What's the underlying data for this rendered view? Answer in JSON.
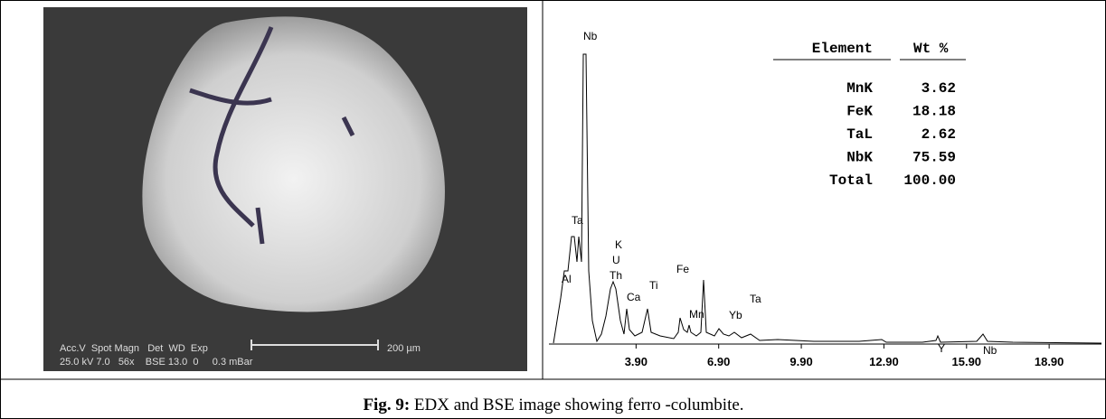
{
  "photo": {
    "line1": "Acc.V  Spot Magn   Det  WD  Exp",
    "line2": "25.0 kV 7.0   56x    BSE 13.0  0     0.3 mBar",
    "scale": "200 µm"
  },
  "spectrum": {
    "xlim": [
      0.9,
      20.8
    ],
    "xticks": [
      {
        "value": 3.9,
        "label": "3.90"
      },
      {
        "value": 6.9,
        "label": "6.90"
      },
      {
        "value": 9.9,
        "label": "9.90"
      },
      {
        "value": 12.9,
        "label": "12.90"
      },
      {
        "value": 15.9,
        "label": "15.90"
      },
      {
        "value": 18.9,
        "label": "18.90"
      }
    ],
    "peak_labels": [
      "Nb",
      "Ta",
      "K",
      "U",
      "Th",
      "Al",
      "Ca",
      "Ti",
      "Fe",
      "Mn",
      "Yb",
      "Ta",
      "Y",
      "Nb"
    ]
  },
  "table": {
    "header": [
      "Element",
      "Wt %"
    ],
    "rows": [
      [
        "MnK",
        "3.62"
      ],
      [
        "FeK",
        "18.18"
      ],
      [
        "TaL",
        "2.62"
      ],
      [
        "NbK",
        "75.59"
      ],
      [
        "Total",
        "100.00"
      ]
    ]
  },
  "caption": {
    "label": "Fig. 9:",
    "text": " EDX and BSE image showing ferro -columbite."
  }
}
